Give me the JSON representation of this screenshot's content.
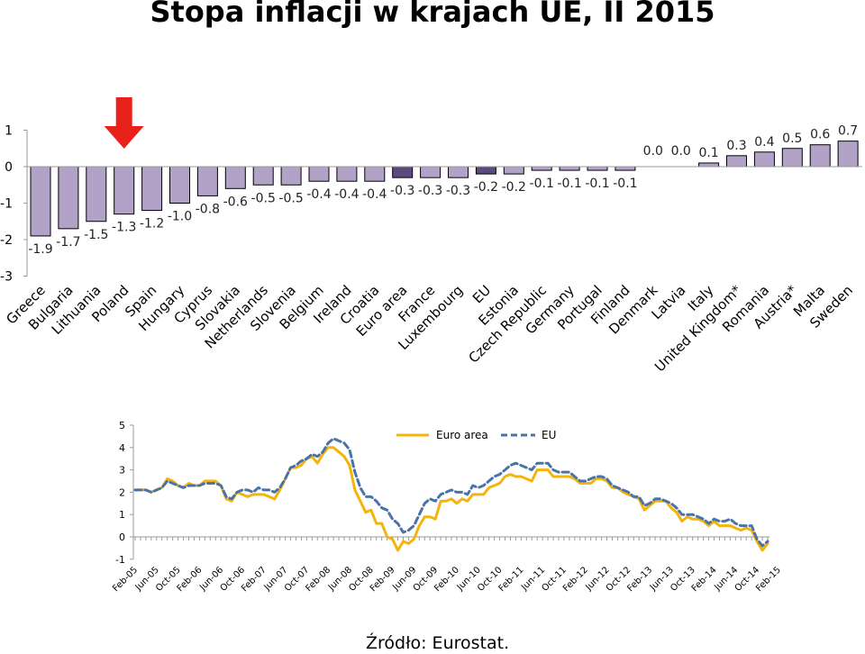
{
  "page": {
    "title": "Stopa inflacji w krajach UE, II 2015",
    "source": "Źródło: Eurostat."
  },
  "chart_data": [
    {
      "type": "bar",
      "categories": [
        "Greece",
        "Bulgaria",
        "Lithuania",
        "Poland",
        "Spain",
        "Hungary",
        "Cyprus",
        "Slovakia",
        "Netherlands",
        "Slovenia",
        "Belgium",
        "Ireland",
        "Croatia",
        "Euro area",
        "France",
        "Luxembourg",
        "EU",
        "Estonia",
        "Czech Republic",
        "Germany",
        "Portugal",
        "Finland",
        "Denmark",
        "Latvia",
        "Italy",
        "United Kingdom*",
        "Romania",
        "Austria*",
        "Malta",
        "Sweden"
      ],
      "values": [
        -1.9,
        -1.7,
        -1.5,
        -1.3,
        -1.2,
        -1.0,
        -0.8,
        -0.6,
        -0.5,
        -0.5,
        -0.4,
        -0.4,
        -0.4,
        -0.3,
        -0.3,
        -0.3,
        -0.2,
        -0.2,
        -0.1,
        -0.1,
        -0.1,
        -0.1,
        0.0,
        0.0,
        0.1,
        0.3,
        0.4,
        0.5,
        0.6,
        0.7
      ],
      "value_labels": [
        "-1.9",
        "-1.7",
        "-1.5",
        "-1.3",
        "-1.2",
        "-1.0",
        "-0.8",
        "-0.6",
        "-0.5",
        "-0.5",
        "-0.4",
        "-0.4",
        "-0.4",
        "-0.3",
        "-0.3",
        "-0.3",
        "-0.2",
        "-0.2",
        "-0.1",
        "-0.1",
        "-0.1",
        "-0.1",
        "0.0",
        "0.0",
        "0.1",
        "0.3",
        "0.4",
        "0.5",
        "0.6",
        "0.7"
      ],
      "highlight": [
        "Euro area",
        "EU"
      ],
      "highlight_color": "#5c4a7d",
      "bar_color": "#b3a2c7",
      "marker": {
        "target": "Poland",
        "shape": "down-arrow",
        "color": "#e8211b"
      },
      "yticks": [
        "1",
        "0",
        "-1",
        "-2",
        "-3"
      ],
      "ylim": [
        -3,
        1
      ],
      "xlabel": "",
      "ylabel": "",
      "grid": false,
      "legend": "none"
    },
    {
      "type": "line",
      "yticks": [
        "5",
        "4",
        "3",
        "2",
        "1",
        "0",
        "-1"
      ],
      "ylim": [
        -1,
        5
      ],
      "xtick_labels": [
        "Feb-05",
        "Jun-05",
        "Oct-05",
        "Feb-06",
        "Jun-06",
        "Oct-06",
        "Feb-07",
        "Jun-07",
        "Oct-07",
        "Feb-08",
        "Jun-08",
        "Oct-08",
        "Feb-09",
        "Jun-09",
        "Oct-09",
        "Feb-10",
        "Jun-10",
        "Oct-10",
        "Feb-11",
        "Jun-11",
        "Oct-11",
        "Feb-12",
        "Jun-12",
        "Oct-12",
        "Feb-13",
        "Jun-13",
        "Oct-13",
        "Feb-14",
        "Jun-14",
        "Oct-14",
        "Feb-15"
      ],
      "legend": "top",
      "grid": false,
      "xlabel": "",
      "ylabel": "",
      "series": [
        {
          "name": "Euro area",
          "color": "#f5b40b",
          "dash": "solid",
          "values": [
            2.1,
            2.1,
            2.1,
            2.0,
            2.1,
            2.2,
            2.6,
            2.5,
            2.3,
            2.2,
            2.4,
            2.3,
            2.3,
            2.5,
            2.5,
            2.5,
            2.3,
            1.7,
            1.6,
            2.0,
            1.9,
            1.8,
            1.9,
            1.9,
            1.9,
            1.8,
            1.7,
            2.1,
            2.6,
            3.1,
            3.1,
            3.2,
            3.5,
            3.6,
            3.3,
            3.7,
            4.0,
            4.0,
            3.8,
            3.6,
            3.2,
            2.1,
            1.6,
            1.1,
            1.2,
            0.6,
            0.6,
            0.0,
            -0.1,
            -0.6,
            -0.2,
            -0.3,
            -0.1,
            0.5,
            0.9,
            0.9,
            0.8,
            1.6,
            1.6,
            1.7,
            1.5,
            1.7,
            1.6,
            1.9,
            1.9,
            1.9,
            2.2,
            2.3,
            2.4,
            2.7,
            2.8,
            2.7,
            2.7,
            2.6,
            2.5,
            3.0,
            3.0,
            3.0,
            2.7,
            2.7,
            2.7,
            2.7,
            2.6,
            2.4,
            2.4,
            2.4,
            2.6,
            2.6,
            2.5,
            2.2,
            2.2,
            2.0,
            1.9,
            1.8,
            1.7,
            1.2,
            1.4,
            1.6,
            1.6,
            1.6,
            1.3,
            1.1,
            0.7,
            0.9,
            0.8,
            0.8,
            0.7,
            0.5,
            0.7,
            0.5,
            0.5,
            0.5,
            0.4,
            0.3,
            0.4,
            0.3,
            -0.2,
            -0.6,
            -0.3
          ]
        },
        {
          "name": "EU",
          "color": "#4a74a8",
          "dash": "dashed",
          "values": [
            2.1,
            2.1,
            2.1,
            2.0,
            2.1,
            2.2,
            2.5,
            2.4,
            2.3,
            2.2,
            2.3,
            2.3,
            2.3,
            2.4,
            2.4,
            2.4,
            2.3,
            1.8,
            1.7,
            2.0,
            2.1,
            2.1,
            2.0,
            2.2,
            2.1,
            2.1,
            2.0,
            2.2,
            2.6,
            3.1,
            3.2,
            3.4,
            3.5,
            3.7,
            3.6,
            3.8,
            4.2,
            4.4,
            4.3,
            4.2,
            3.9,
            2.9,
            2.2,
            1.8,
            1.8,
            1.6,
            1.3,
            1.2,
            0.8,
            0.6,
            0.2,
            0.3,
            0.5,
            1.0,
            1.5,
            1.7,
            1.6,
            1.9,
            2.0,
            2.1,
            2.0,
            2.0,
            1.9,
            2.3,
            2.2,
            2.3,
            2.5,
            2.7,
            2.8,
            3.0,
            3.2,
            3.3,
            3.2,
            3.1,
            3.0,
            3.3,
            3.3,
            3.3,
            3.0,
            2.9,
            2.9,
            2.9,
            2.7,
            2.5,
            2.5,
            2.6,
            2.7,
            2.7,
            2.6,
            2.3,
            2.2,
            2.1,
            2.0,
            1.8,
            1.8,
            1.4,
            1.5,
            1.7,
            1.7,
            1.6,
            1.5,
            1.3,
            1.0,
            1.0,
            1.0,
            0.9,
            0.8,
            0.6,
            0.8,
            0.7,
            0.7,
            0.8,
            0.6,
            0.5,
            0.5,
            0.5,
            -0.1,
            -0.4,
            -0.2
          ]
        }
      ]
    }
  ]
}
